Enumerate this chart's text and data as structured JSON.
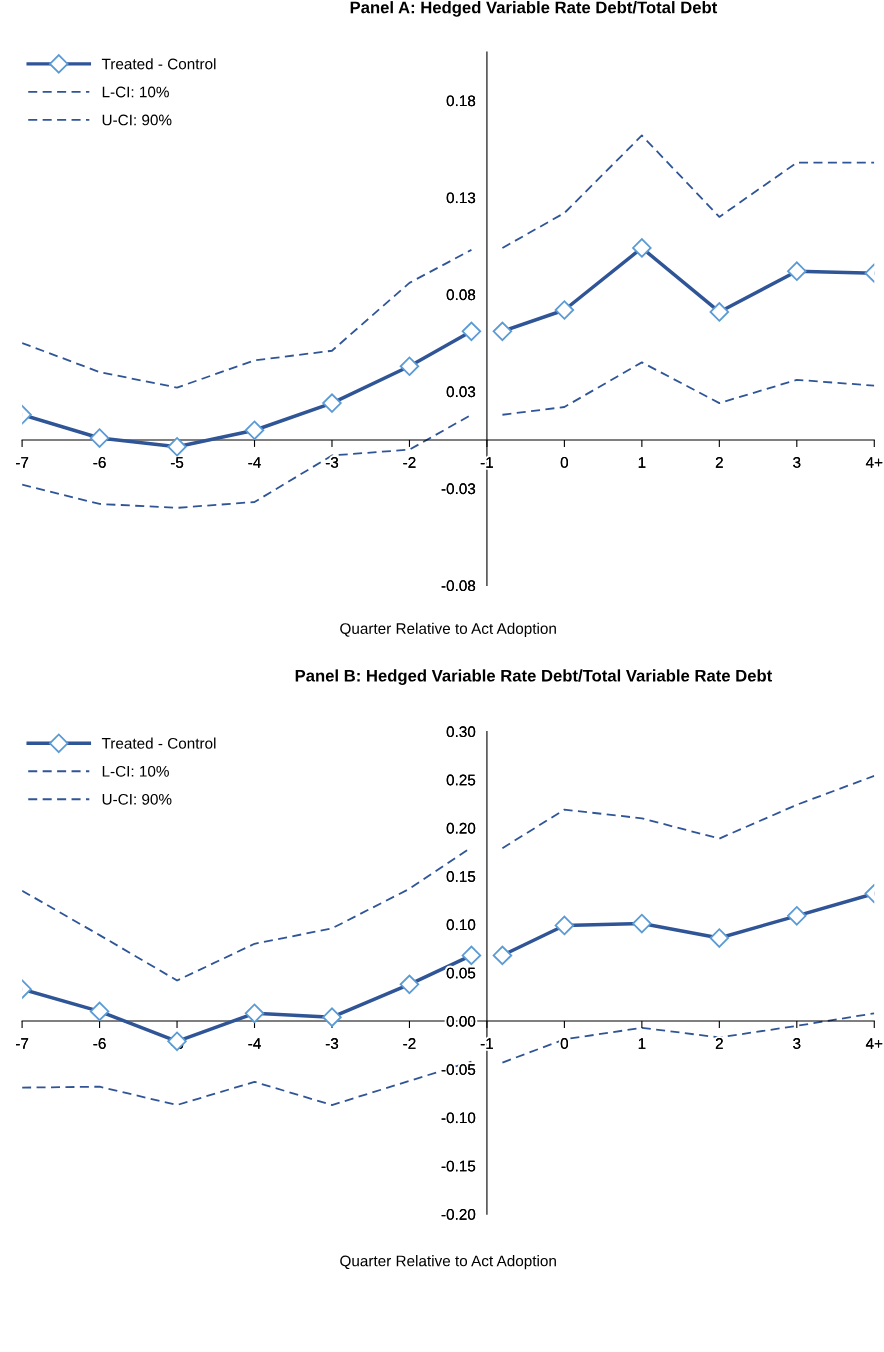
{
  "chart_data": [
    {
      "type": "line",
      "title": "Panel A: Hedged Variable Rate Debt/Total Debt",
      "xlabel": "Quarter Relative to Act Adoption",
      "x": [
        -7,
        -6,
        -5,
        -4,
        -3,
        -2,
        -1.2,
        -1,
        -0.8,
        0,
        1,
        2,
        3,
        4
      ],
      "series": [
        {
          "name": "Treated - Control",
          "color": "#2f5597",
          "marker": "diamond",
          "line_style": "solid",
          "values": [
            0.013,
            0.001,
            -0.0035,
            0.005,
            0.019,
            0.038,
            0.056,
            null,
            0.056,
            0.067,
            0.099,
            0.066,
            0.087,
            0.086
          ]
        },
        {
          "name": "L-CI: 10%",
          "color": "#2f5597",
          "marker": "none",
          "line_style": "dashed",
          "values": [
            -0.023,
            -0.033,
            -0.035,
            -0.032,
            -0.008,
            -0.005,
            0.013,
            null,
            0.013,
            0.017,
            0.04,
            0.019,
            0.031,
            0.028
          ]
        },
        {
          "name": "U-CI: 90%",
          "color": "#2f5597",
          "marker": "none",
          "line_style": "dashed",
          "values": [
            0.05,
            0.035,
            0.027,
            0.041,
            0.046,
            0.081,
            0.098,
            null,
            0.099,
            0.117,
            0.157,
            0.115,
            0.143,
            0.143
          ]
        }
      ],
      "xlim": [
        -7,
        4
      ],
      "xticks": [
        -7,
        -6,
        -5,
        -4,
        -3,
        -2,
        -1,
        0,
        1,
        2,
        3,
        {
          "value": 4,
          "label": "4+"
        }
      ],
      "ylim": [
        -0.075,
        0.2
      ],
      "yticks": [
        {
          "value": -0.075,
          "label": "-0.08"
        },
        {
          "value": -0.025,
          "label": "-0.03"
        },
        {
          "value": 0.025,
          "label": "0.03"
        },
        {
          "value": 0.075,
          "label": "0.08"
        },
        {
          "value": 0.125,
          "label": "0.13"
        },
        {
          "value": 0.175,
          "label": "0.18"
        }
      ],
      "legend": "top left"
    },
    {
      "type": "line",
      "title": "Panel B: Hedged Variable Rate Debt/Total Variable Rate Debt",
      "xlabel": "Quarter Relative to Act Adoption",
      "x": [
        -7,
        -6,
        -5,
        -4,
        -3,
        -2,
        -1.2,
        -1,
        -0.8,
        0,
        1,
        2,
        3,
        4
      ],
      "series": [
        {
          "name": "Treated - Control",
          "color": "#2f5597",
          "marker": "diamond",
          "line_style": "solid",
          "values": [
            0.033,
            0.01,
            -0.021,
            0.008,
            0.004,
            0.038,
            0.068,
            null,
            0.068,
            0.099,
            0.101,
            0.086,
            0.109,
            0.132
          ]
        },
        {
          "name": "L-CI: 10%",
          "color": "#2f5597",
          "marker": "none",
          "line_style": "dashed",
          "values": [
            -0.069,
            -0.068,
            -0.087,
            -0.063,
            -0.087,
            -0.062,
            -0.042,
            null,
            -0.043,
            -0.019,
            -0.007,
            -0.017,
            -0.005,
            0.008
          ]
        },
        {
          "name": "U-CI: 90%",
          "color": "#2f5597",
          "marker": "none",
          "line_style": "dashed",
          "values": [
            0.135,
            0.089,
            0.042,
            0.08,
            0.096,
            0.137,
            0.18,
            null,
            0.179,
            0.219,
            0.21,
            0.189,
            0.224,
            0.254
          ]
        }
      ],
      "xlim": [
        -7,
        4
      ],
      "xticks": [
        -7,
        -6,
        -5,
        -4,
        -3,
        -2,
        -1,
        0,
        1,
        2,
        3,
        {
          "value": 4,
          "label": "4+"
        }
      ],
      "ylim": [
        -0.2,
        0.3
      ],
      "yticks": [
        {
          "value": -0.2,
          "label": "-0.20"
        },
        {
          "value": -0.15,
          "label": "-0.15"
        },
        {
          "value": -0.1,
          "label": "-0.10"
        },
        {
          "value": -0.05,
          "label": "-0.05"
        },
        {
          "value": 0,
          "label": "0.00"
        },
        {
          "value": 0.05,
          "label": "0.05"
        },
        {
          "value": 0.1,
          "label": "0.10"
        },
        {
          "value": 0.15,
          "label": "0.15"
        },
        {
          "value": 0.2,
          "label": "0.20"
        },
        {
          "value": 0.25,
          "label": "0.25"
        },
        {
          "value": 0.3,
          "label": "0.30"
        }
      ],
      "legend": "top left"
    }
  ]
}
